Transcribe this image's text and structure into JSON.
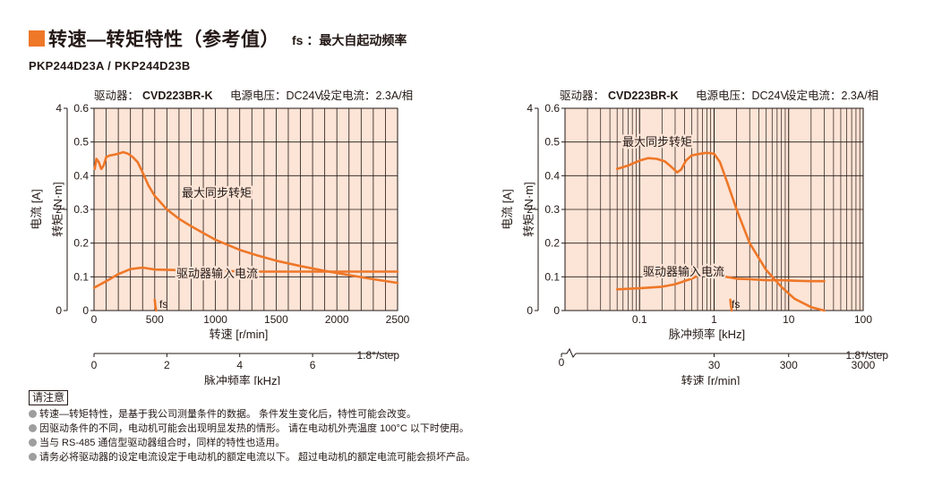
{
  "header": {
    "title": "转速—转矩特性（参考值）",
    "fs_label": "fs ：最大自起动频率",
    "model": "PKP244D23A / PKP244D23B",
    "accent_color": "#ee7728"
  },
  "chart_data": [
    {
      "type": "line",
      "info": {
        "driver_label": "驱动器：",
        "driver_model": "CVD223BR-K",
        "voltage": "电源电压：DC24V",
        "current": "设定电流：2.3A/相"
      },
      "x_scale": "linear",
      "xlim": [
        0,
        2500
      ],
      "x_ticks": [
        "0",
        "500",
        "1000",
        "1500",
        "2000",
        "2500"
      ],
      "xlabel": "转速 [r/min]",
      "secondary_x_ticks": [
        "0",
        "2",
        "4",
        "6"
      ],
      "secondary_x_tick_values": [
        0,
        2,
        4,
        6
      ],
      "secondary_xlim": [
        0,
        8.333
      ],
      "secondary_xlabel": "脉冲频率 [kHz]",
      "step_label": "1.8°/step",
      "ylim": [
        0,
        0.6
      ],
      "y_ticks": [
        "0",
        "0.1",
        "0.2",
        "0.3",
        "0.4",
        "0.5",
        "0.6"
      ],
      "ylabel": "转矩 [N·m]",
      "ylim2": [
        0,
        4
      ],
      "y2_ticks": [
        "0",
        "2",
        "4"
      ],
      "y2label": "电流 [A]",
      "grid": true,
      "series": [
        {
          "name": "最大同步转矩",
          "axis": "torque",
          "x": [
            5,
            20,
            40,
            60,
            80,
            100,
            130,
            160,
            200,
            240,
            280,
            320,
            360,
            400,
            450,
            500,
            600,
            700,
            800,
            900,
            1000,
            1100,
            1200,
            1350,
            1500,
            1700,
            1900,
            2100,
            2300,
            2500
          ],
          "y": [
            0.42,
            0.45,
            0.44,
            0.42,
            0.43,
            0.455,
            0.46,
            0.462,
            0.465,
            0.47,
            0.465,
            0.455,
            0.44,
            0.41,
            0.37,
            0.34,
            0.3,
            0.272,
            0.25,
            0.23,
            0.21,
            0.195,
            0.18,
            0.163,
            0.148,
            0.132,
            0.118,
            0.105,
            0.093,
            0.082
          ]
        },
        {
          "name": "驱动器输入电流",
          "axis": "current",
          "x": [
            0,
            100,
            200,
            300,
            400,
            500,
            700,
            900,
            1100,
            1300,
            1500,
            1800,
            2100,
            2500
          ],
          "y": [
            0.45,
            0.58,
            0.72,
            0.82,
            0.85,
            0.81,
            0.8,
            0.79,
            0.78,
            0.77,
            0.77,
            0.77,
            0.77,
            0.77
          ]
        },
        {
          "name": "fs",
          "axis": "torque",
          "x": [
            500,
            505,
            512
          ],
          "y": [
            0.032,
            0.015,
            0
          ]
        }
      ],
      "annotations": {
        "torque": "最大同步转矩",
        "current": "驱动器输入电流",
        "fs": "fs"
      }
    },
    {
      "type": "line",
      "info": {
        "driver_label": "驱动器：",
        "driver_model": "CVD223BR-K",
        "voltage": "电源电压：DC24V",
        "current": "设定电流：2.3A/相"
      },
      "x_scale": "log",
      "xlim": [
        0.01,
        100
      ],
      "x_ticks": [
        "0.1",
        "1",
        "10",
        "100"
      ],
      "x_tick_values": [
        0.1,
        1,
        10,
        100
      ],
      "xlabel": "脉冲频率 [kHz]",
      "secondary_x_ticks": [
        "30",
        "300",
        "3000"
      ],
      "secondary_x_tick_values": [
        30,
        300,
        3000
      ],
      "secondary_xlabel": "转速 [r/min]",
      "step_label": "1.8°/step",
      "origin_label": "0",
      "ylim": [
        0,
        0.6
      ],
      "y_ticks": [
        "0",
        "0.1",
        "0.2",
        "0.3",
        "0.4",
        "0.5",
        "0.6"
      ],
      "ylabel": "转矩 [N·m]",
      "ylim2": [
        0,
        4
      ],
      "y2_ticks": [
        "0",
        "2",
        "4"
      ],
      "y2label": "电流 [A]",
      "grid": true,
      "series": [
        {
          "name": "最大同步转矩",
          "axis": "torque",
          "x": [
            0.05,
            0.07,
            0.1,
            0.13,
            0.17,
            0.22,
            0.27,
            0.32,
            0.36,
            0.42,
            0.5,
            0.65,
            0.8,
            1.0,
            1.2,
            1.5,
            2.0,
            3.0,
            5.0,
            8.0,
            12.0,
            20.0,
            30.0
          ],
          "y": [
            0.42,
            0.43,
            0.445,
            0.452,
            0.45,
            0.442,
            0.425,
            0.41,
            0.418,
            0.445,
            0.46,
            0.465,
            0.468,
            0.465,
            0.44,
            0.38,
            0.3,
            0.2,
            0.12,
            0.07,
            0.035,
            0.01,
            0
          ]
        },
        {
          "name": "驱动器输入电流",
          "axis": "current",
          "x": [
            0.05,
            0.1,
            0.2,
            0.3,
            0.5,
            0.8,
            1.0,
            1.3,
            2.0,
            3.0,
            5.0,
            8.0,
            12.0,
            20.0,
            30.0
          ],
          "y": [
            0.42,
            0.44,
            0.47,
            0.52,
            0.63,
            0.78,
            0.8,
            0.68,
            0.63,
            0.62,
            0.6,
            0.6,
            0.59,
            0.58,
            0.58
          ]
        },
        {
          "name": "fs",
          "axis": "torque",
          "x": [
            1.65,
            1.68,
            1.72
          ],
          "y": [
            0.032,
            0.015,
            0
          ]
        }
      ],
      "annotations": {
        "torque": "最大同步转矩",
        "current": "驱动器输入电流",
        "fs": "fs"
      }
    }
  ],
  "notes": {
    "heading": "请注意",
    "items": [
      "转速—转矩特性，是基于我公司测量条件的数据。 条件发生变化后，特性可能会改变。",
      "因驱动条件的不同，电动机可能会出现明显发热的情形。 请在电动机外壳温度 100°C 以下时使用。",
      "当与 RS-485 通信型驱动器组合时，同样的特性也适用。",
      "请务必将驱动器的设定电流设定于电动机的额定电流以下。 超过电动机的额定电流可能会损坏产品。"
    ]
  },
  "colors": {
    "curve": "#ee7728",
    "plot_background": "#fce4d6",
    "grid": "#231815",
    "bullet": "#9e9e9f"
  }
}
